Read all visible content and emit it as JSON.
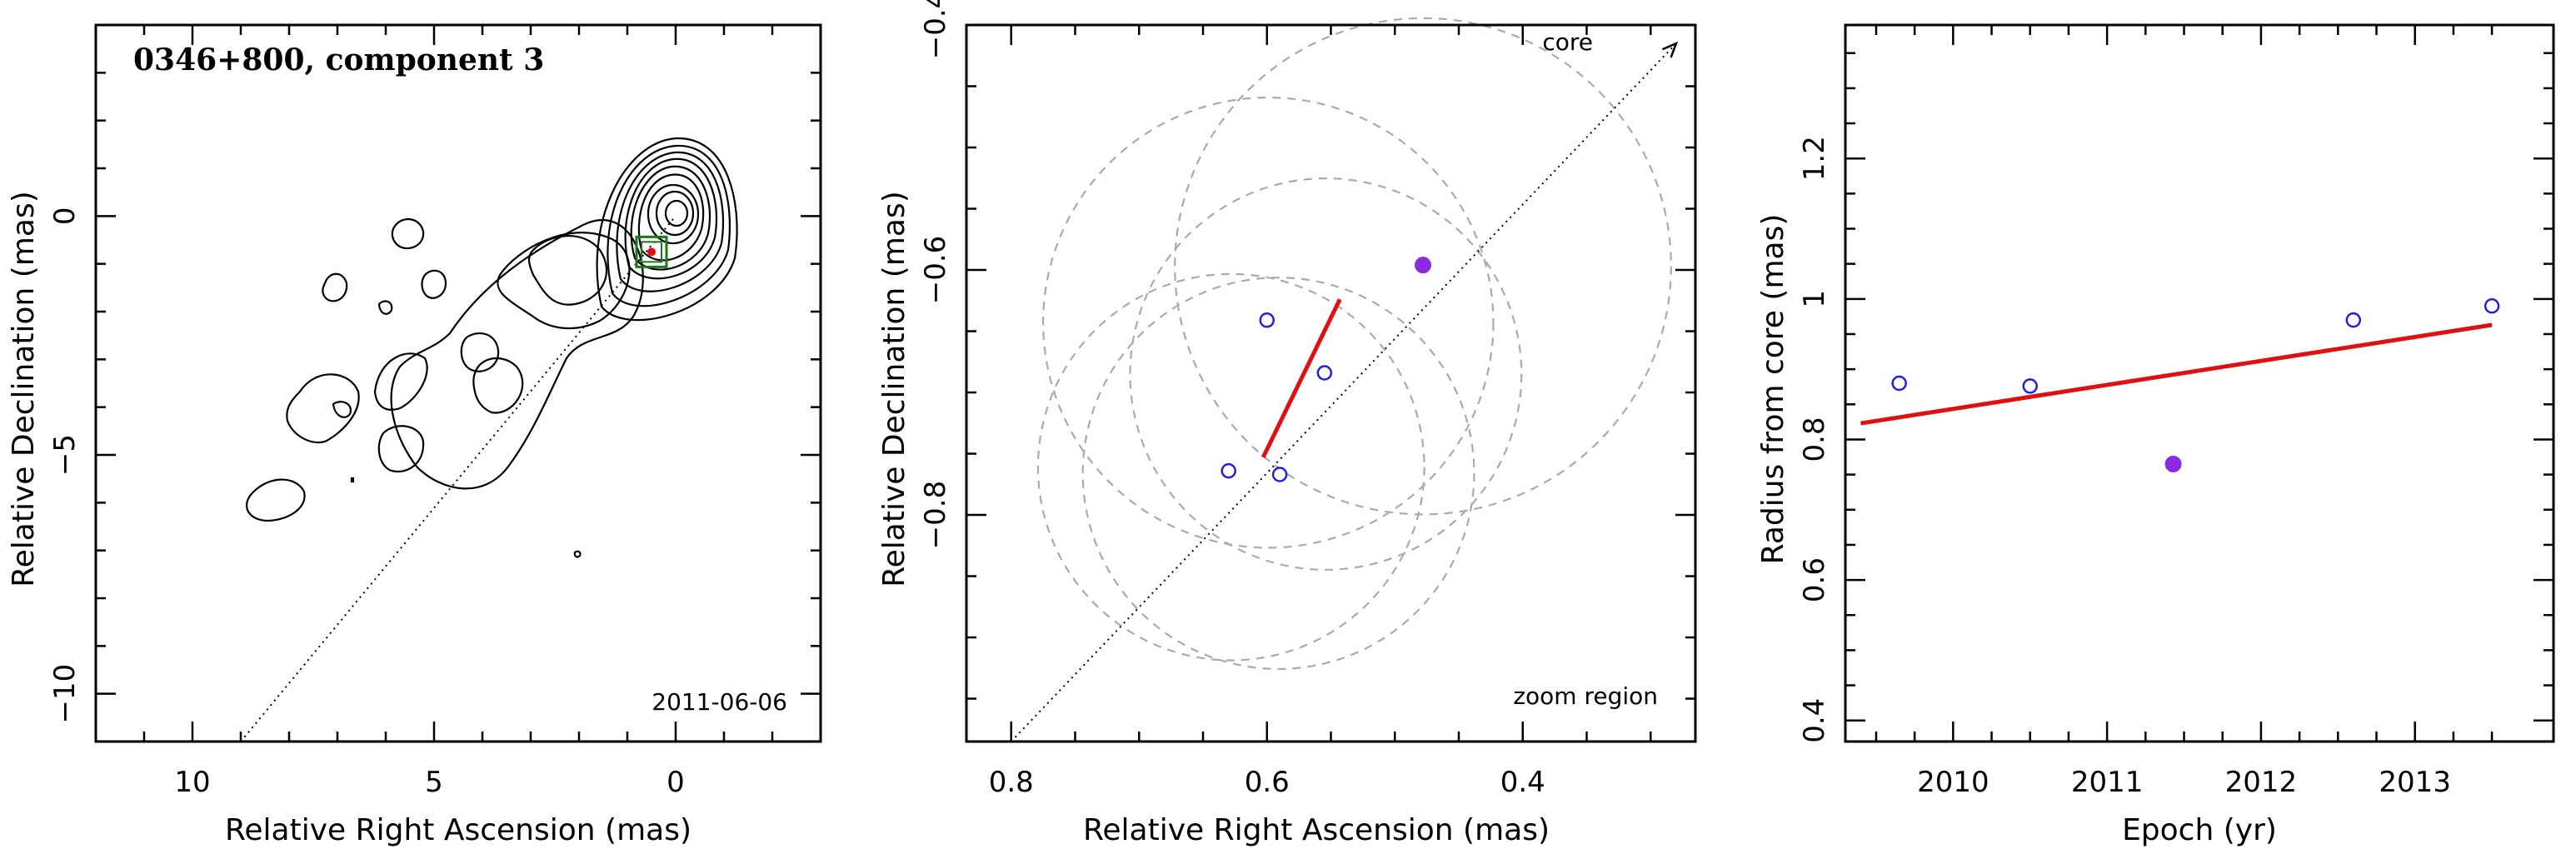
{
  "panels": {
    "map": {
      "title": "0346+800, component 3",
      "date": "2011-06-06",
      "xlabel": "Relative Right Ascension (mas)",
      "ylabel": "Relative Declination (mas)",
      "xlim": [
        12,
        -3
      ],
      "ylim": [
        -11,
        4
      ],
      "xticks": [
        10,
        5,
        0
      ],
      "yticks": [
        0,
        -5,
        -10
      ],
      "tick_labels_x": [
        "10",
        "5",
        "0"
      ],
      "tick_labels_y": [
        "0",
        "−5",
        "−10"
      ]
    },
    "zoom": {
      "annotation": "zoom region",
      "core_label": "core",
      "xlabel": "Relative Right Ascension (mas)",
      "ylabel": "Relative Declination (mas)",
      "xlim": [
        0.835,
        0.265
      ],
      "ylim": [
        -0.985,
        -0.4
      ],
      "xticks": [
        0.8,
        0.6,
        0.4
      ],
      "yticks": [
        -0.4,
        -0.6,
        -0.8
      ],
      "tick_labels_x": [
        "0.8",
        "0.6",
        "0.4"
      ],
      "tick_labels_y": [
        "−0.4",
        "−0.6",
        "−0.8"
      ]
    },
    "radius": {
      "xlabel": "Epoch (yr)",
      "ylabel": "Radius from core (mas)",
      "xlim": [
        2009.3,
        2013.9
      ],
      "ylim": [
        0.37,
        1.39
      ],
      "xticks": [
        2010,
        2011,
        2012,
        2013
      ],
      "yticks": [
        0.4,
        0.6,
        0.8,
        1,
        1.2
      ],
      "tick_labels_x": [
        "2010",
        "2011",
        "2012",
        "2013"
      ],
      "tick_labels_y": [
        "0.4",
        "0.6",
        "0.8",
        "1",
        "1.2"
      ]
    }
  },
  "chart_data": [
    {
      "type": "scatter",
      "panel": "map",
      "title": "0346+800, component 3",
      "xlabel": "Relative Right Ascension (mas)",
      "ylabel": "Relative Declination (mas)",
      "xlim": [
        12,
        -3
      ],
      "ylim": [
        -11,
        4
      ],
      "core_direction_line": [
        [
          9,
          -11
        ],
        [
          0,
          0
        ]
      ],
      "component_position": {
        "x": 0.5,
        "y": -0.75
      }
    },
    {
      "type": "scatter",
      "panel": "zoom",
      "xlabel": "Relative Right Ascension (mas)",
      "ylabel": "Relative Declination (mas)",
      "xlim": [
        0.835,
        0.265
      ],
      "ylim": [
        -0.985,
        -0.4
      ],
      "open_points": [
        {
          "x": 0.6,
          "y": -0.641
        },
        {
          "x": 0.555,
          "y": -0.684
        },
        {
          "x": 0.63,
          "y": -0.764
        },
        {
          "x": 0.59,
          "y": -0.767
        }
      ],
      "filled_points": [
        {
          "x": 0.478,
          "y": -0.596
        }
      ],
      "circles": [
        {
          "cx": 0.599,
          "cy": -0.643,
          "r": 0.176
        },
        {
          "cx": 0.554,
          "cy": -0.685,
          "r": 0.153
        },
        {
          "cx": 0.478,
          "cy": -0.597,
          "r": 0.194
        },
        {
          "cx": 0.628,
          "cy": -0.761,
          "r": 0.151
        },
        {
          "cx": 0.591,
          "cy": -0.766,
          "r": 0.153
        }
      ],
      "fit_segment": [
        [
          0.603,
          -0.753
        ],
        [
          0.543,
          -0.624
        ]
      ],
      "core_direction_line": [
        [
          0.8,
          -0.985
        ],
        [
          0.28,
          -0.415
        ]
      ]
    },
    {
      "type": "scatter",
      "panel": "radius",
      "xlabel": "Epoch (yr)",
      "ylabel": "Radius from core (mas)",
      "xlim": [
        2009.3,
        2013.9
      ],
      "ylim": [
        0.37,
        1.39
      ],
      "open_points": [
        {
          "x": 2009.65,
          "y": 0.88
        },
        {
          "x": 2010.5,
          "y": 0.876
        },
        {
          "x": 2012.6,
          "y": 0.97
        },
        {
          "x": 2013.5,
          "y": 0.99
        }
      ],
      "filled_points": [
        {
          "x": 2011.43,
          "y": 0.765
        }
      ],
      "fit_line": [
        [
          2009.4,
          0.823
        ],
        [
          2013.5,
          0.963
        ]
      ]
    }
  ],
  "colors": {
    "open_marker": "#2020e0",
    "filled_marker": "#8a2be2",
    "fit_line": "#e01010",
    "circles": "#aaaaaa",
    "component_box": "#1a7a1a"
  }
}
